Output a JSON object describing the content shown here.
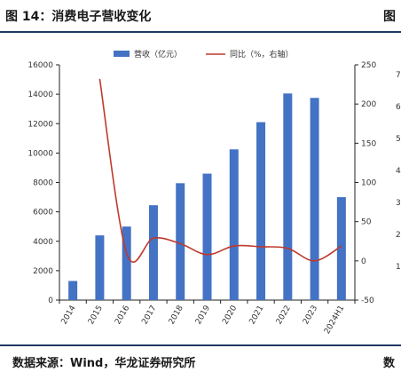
{
  "header": {
    "title": "图 14：消费电子营收变化",
    "title_right_cut": "图"
  },
  "footer": {
    "source": "数据来源：Wind，华龙证券研究所",
    "source_right_cut": "数"
  },
  "colors": {
    "bar": "#4472c4",
    "line": "#c0392b",
    "rule": "#1f3864"
  },
  "right_panel_peek": [
    "7",
    "6",
    "5",
    "4",
    "3",
    "2",
    "1"
  ],
  "chart_data": {
    "type": "bar",
    "categories": [
      "2014",
      "2015",
      "2016",
      "2017",
      "2018",
      "2019",
      "2020",
      "2021",
      "2022",
      "2023",
      "2024H1"
    ],
    "series": [
      {
        "name": "营收（亿元）",
        "type": "bar",
        "axis": "left",
        "values": [
          1300,
          4400,
          5000,
          6450,
          7950,
          8600,
          10250,
          12100,
          14050,
          13750,
          7000
        ]
      },
      {
        "name": "同比（%，右轴）",
        "type": "line",
        "axis": "right",
        "values": [
          null,
          232,
          10,
          29,
          22,
          8,
          19,
          18,
          16,
          0,
          19
        ]
      }
    ],
    "y_left": {
      "min": 0,
      "max": 16000,
      "ticks": [
        "0",
        "2000",
        "4000",
        "6000",
        "8000",
        "10000",
        "12000",
        "14000",
        "16000"
      ]
    },
    "y_right": {
      "min": -50,
      "max": 250,
      "ticks": [
        "-50",
        "0",
        "50",
        "100",
        "150",
        "200",
        "250"
      ]
    },
    "legend_position": "top-center",
    "grid": false
  }
}
